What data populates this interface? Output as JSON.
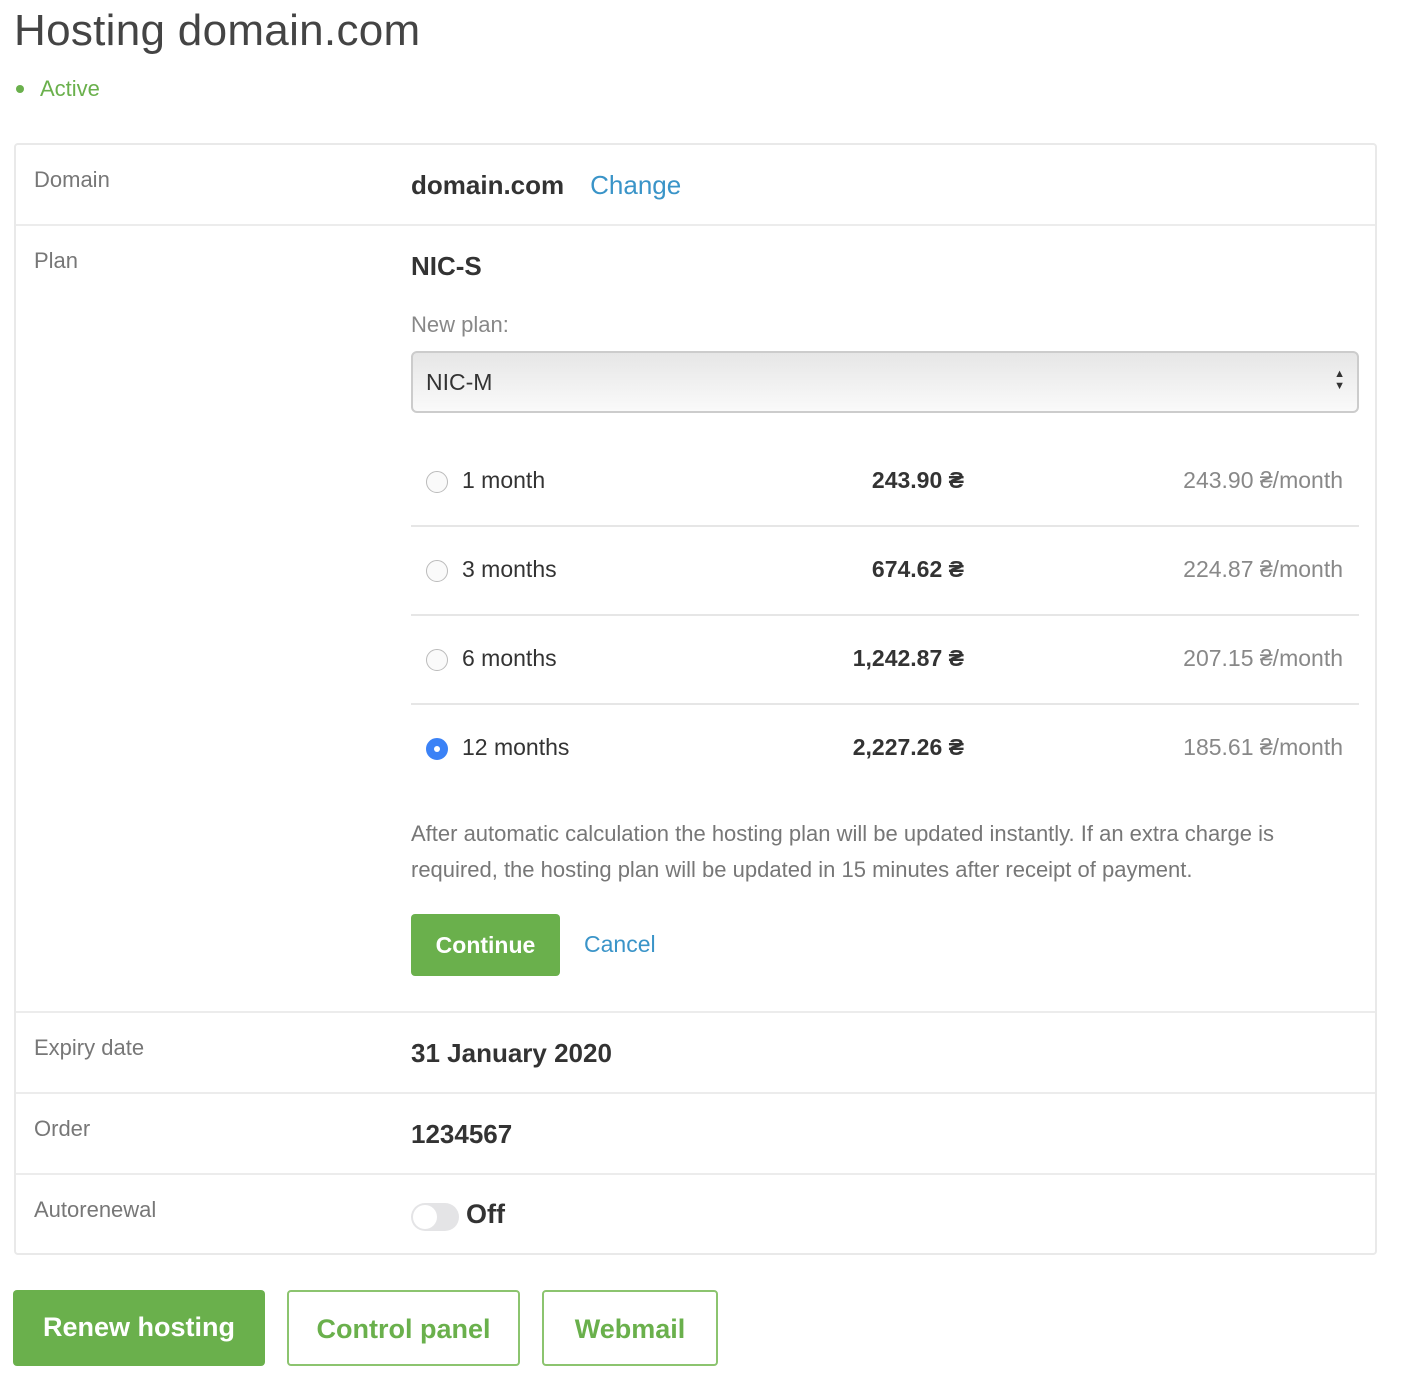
{
  "header": {
    "title": "Hosting domain.com",
    "status": "Active",
    "status_color": "#6ab04c"
  },
  "domain": {
    "label": "Domain",
    "value": "domain.com",
    "change": "Change"
  },
  "plan": {
    "label": "Plan",
    "current": "NIC-S",
    "new_plan_label": "New plan:",
    "selected": "NIC-M",
    "options": [
      {
        "period": "1 month",
        "total": "243.90 ₴",
        "per_month": "243.90 ₴/month",
        "selected": false
      },
      {
        "period": "3 months",
        "total": "674.62 ₴",
        "per_month": "224.87 ₴/month",
        "selected": false
      },
      {
        "period": "6 months",
        "total": "1,242.87 ₴",
        "per_month": "207.15 ₴/month",
        "selected": false
      },
      {
        "period": "12 months",
        "total": "2,227.26 ₴",
        "per_month": "185.61 ₴/month",
        "selected": true
      }
    ],
    "note": "After automatic calculation the hosting plan will be updated instantly. If an extra charge is required, the hosting plan will be updated in 15 minutes after receipt of payment.",
    "continue": "Continue",
    "cancel": "Cancel"
  },
  "expiry": {
    "label": "Expiry date",
    "value": "31 January 2020"
  },
  "order": {
    "label": "Order",
    "value": "1234567"
  },
  "autorenewal": {
    "label": "Autorenewal",
    "state": "Off",
    "enabled": false
  },
  "actions": {
    "renew": "Renew hosting",
    "control_panel": "Control panel",
    "webmail": "Webmail"
  },
  "colors": {
    "accent": "#6ab04c",
    "link": "#3a94c8",
    "radio": "#3b82f6"
  }
}
